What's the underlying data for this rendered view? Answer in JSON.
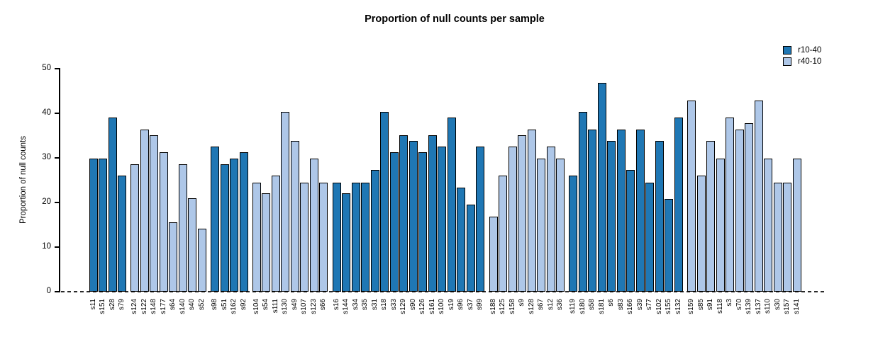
{
  "chart_data": {
    "type": "bar",
    "title": "Proportion of null counts per sample",
    "xlabel": "",
    "ylabel": "Proportion of null counts",
    "ylim": [
      0,
      50
    ],
    "yticks": [
      0,
      10,
      20,
      30,
      40,
      50
    ],
    "grid": false,
    "zero_line_style": "dashed",
    "bar_outline_color": "#000000",
    "legend": {
      "position": "top-right",
      "entries": [
        {
          "name": "r10-40",
          "color": "#1f77b4"
        },
        {
          "name": "r40-10",
          "color": "#aec7e8"
        }
      ]
    },
    "groups": [
      {
        "series": "r10-40",
        "samples": [
          {
            "label": "s11",
            "value": 29.9
          },
          {
            "label": "s151",
            "value": 29.9
          },
          {
            "label": "s28",
            "value": 39.0
          },
          {
            "label": "s79",
            "value": 26.0
          }
        ]
      },
      {
        "series": "r40-10",
        "samples": [
          {
            "label": "s124",
            "value": 28.6
          },
          {
            "label": "s122",
            "value": 36.4
          },
          {
            "label": "s148",
            "value": 35.1
          },
          {
            "label": "s177",
            "value": 31.3
          },
          {
            "label": "s64",
            "value": 15.6
          },
          {
            "label": "s140",
            "value": 28.6
          },
          {
            "label": "s40",
            "value": 20.9
          },
          {
            "label": "s52",
            "value": 14.2
          }
        ]
      },
      {
        "series": "r10-40",
        "samples": [
          {
            "label": "s98",
            "value": 32.5
          },
          {
            "label": "s51",
            "value": 28.6
          },
          {
            "label": "s162",
            "value": 29.9
          },
          {
            "label": "s92",
            "value": 31.3
          }
        ]
      },
      {
        "series": "r40-10",
        "samples": [
          {
            "label": "s104",
            "value": 24.5
          },
          {
            "label": "s54",
            "value": 22.1
          },
          {
            "label": "s111",
            "value": 26.0
          },
          {
            "label": "s130",
            "value": 40.3
          },
          {
            "label": "s49",
            "value": 33.8
          },
          {
            "label": "s107",
            "value": 24.5
          },
          {
            "label": "s123",
            "value": 29.9
          },
          {
            "label": "s66",
            "value": 24.5
          }
        ]
      },
      {
        "series": "r10-40",
        "samples": [
          {
            "label": "s16",
            "value": 24.5
          },
          {
            "label": "s144",
            "value": 22.1
          },
          {
            "label": "s34",
            "value": 24.5
          },
          {
            "label": "s35",
            "value": 24.5
          },
          {
            "label": "s31",
            "value": 27.3
          },
          {
            "label": "s18",
            "value": 40.3
          },
          {
            "label": "s33",
            "value": 31.3
          },
          {
            "label": "s129",
            "value": 35.1
          },
          {
            "label": "s90",
            "value": 33.8
          },
          {
            "label": "s126",
            "value": 31.3
          },
          {
            "label": "s161",
            "value": 35.1
          },
          {
            "label": "s100",
            "value": 32.5
          },
          {
            "label": "s19",
            "value": 39.0
          },
          {
            "label": "s96",
            "value": 23.3
          },
          {
            "label": "s37",
            "value": 19.5
          },
          {
            "label": "s99",
            "value": 32.5
          }
        ]
      },
      {
        "series": "r40-10",
        "samples": [
          {
            "label": "s188",
            "value": 16.8
          },
          {
            "label": "s125",
            "value": 26.0
          },
          {
            "label": "s158",
            "value": 32.5
          },
          {
            "label": "s9",
            "value": 35.1
          },
          {
            "label": "s128",
            "value": 36.4
          },
          {
            "label": "s67",
            "value": 29.9
          },
          {
            "label": "s12",
            "value": 32.5
          },
          {
            "label": "s36",
            "value": 29.9
          }
        ]
      },
      {
        "series": "r10-40",
        "samples": [
          {
            "label": "s119",
            "value": 26.0
          },
          {
            "label": "s180",
            "value": 40.3
          },
          {
            "label": "s58",
            "value": 36.4
          },
          {
            "label": "s181",
            "value": 46.9
          },
          {
            "label": "s6",
            "value": 33.8
          },
          {
            "label": "s83",
            "value": 36.4
          },
          {
            "label": "s166",
            "value": 27.3
          },
          {
            "label": "s39",
            "value": 36.4
          },
          {
            "label": "s77",
            "value": 24.5
          },
          {
            "label": "s102",
            "value": 33.8
          },
          {
            "label": "s155",
            "value": 20.8
          },
          {
            "label": "s132",
            "value": 39.0
          }
        ]
      },
      {
        "series": "r40-10",
        "samples": [
          {
            "label": "s159",
            "value": 42.9
          },
          {
            "label": "s85",
            "value": 26.0
          },
          {
            "label": "s91",
            "value": 33.8
          },
          {
            "label": "s118",
            "value": 29.9
          },
          {
            "label": "s3",
            "value": 39.0
          },
          {
            "label": "s70",
            "value": 36.4
          },
          {
            "label": "s139",
            "value": 37.8
          },
          {
            "label": "s137",
            "value": 42.9
          },
          {
            "label": "s110",
            "value": 29.9
          },
          {
            "label": "s30",
            "value": 24.5
          },
          {
            "label": "s157",
            "value": 24.5
          },
          {
            "label": "s141",
            "value": 29.9
          }
        ]
      }
    ]
  }
}
